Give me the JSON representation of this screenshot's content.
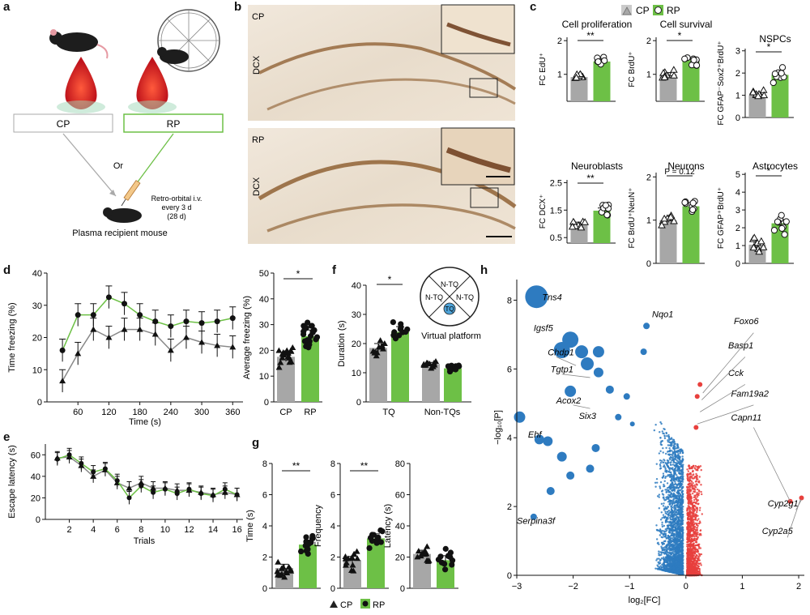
{
  "panel_letters": [
    "a",
    "b",
    "c",
    "d",
    "e",
    "f",
    "g",
    "h"
  ],
  "colors": {
    "cp": "#a7a7a7",
    "rp": "#6dc046",
    "volc_blue": "#2e7bc0",
    "volc_red": "#e8403d",
    "tq": "#4ea3d8"
  },
  "panel_a": {
    "box_cp": "CP",
    "box_rp": "RP",
    "or": "Or",
    "injection": [
      "Retro-orbital i.v.",
      "every 3 d",
      "(28 d)"
    ],
    "recipient": "Plasma recipient mouse"
  },
  "panel_b": {
    "top_label": "CP",
    "bottom_label": "RP",
    "stain": "DCX"
  },
  "panel_c": {
    "legend": {
      "cp": "CP",
      "rp": "RP"
    },
    "charts": [
      {
        "title": "Cell proliferation",
        "ylabel": "FC EdU⁺",
        "yticks": [
          "1",
          "2"
        ],
        "ylim": [
          0.2,
          2.1
        ],
        "sig": "**",
        "cp_mean": 0.92,
        "rp_mean": 1.38
      },
      {
        "title": "Cell survival",
        "ylabel": "FC BrdU⁺",
        "yticks": [
          "1",
          "2"
        ],
        "ylim": [
          0.2,
          2.1
        ],
        "sig": "*",
        "cp_mean": 1.0,
        "rp_mean": 1.42
      },
      {
        "title": "NSPCs",
        "ylabel": "FC GFAP⁻Sox2⁺BrdU⁺",
        "yticks": [
          "0",
          "1",
          "2",
          "3"
        ],
        "ylim": [
          0,
          3.1
        ],
        "sig": "*",
        "cp_mean": 1.0,
        "rp_mean": 1.92
      },
      {
        "title": "Neuroblasts",
        "ylabel": "FC DCX⁺",
        "yticks": [
          "0.5",
          "1.5",
          "2.5"
        ],
        "ylim": [
          0.3,
          2.6
        ],
        "sig": "**",
        "cp_mean": 1.0,
        "rp_mean": 1.48
      },
      {
        "title": "Neurons",
        "ylabel": "FC BrdU⁺NeuN⁺",
        "yticks": [
          "0",
          "1",
          "2"
        ],
        "ylim": [
          0,
          2.1
        ],
        "sig": "P = 0.12",
        "cp_mean": 1.0,
        "rp_mean": 1.32
      },
      {
        "title": "Astrocytes",
        "ylabel": "FC GFAP⁺BrdU⁺",
        "yticks": [
          "0",
          "1",
          "2",
          "3",
          "4",
          "5"
        ],
        "ylim": [
          0,
          5.1
        ],
        "sig": "*",
        "cp_mean": 1.05,
        "rp_mean": 2.25
      }
    ]
  },
  "chart_data": [
    {
      "id": "d_time",
      "type": "line",
      "xlabel": "Time (s)",
      "ylabel": "Time freezing (%)",
      "xticks": [
        "60",
        "120",
        "180",
        "240",
        "300",
        "360"
      ],
      "yticks": [
        "0",
        "10",
        "20",
        "30",
        "40"
      ],
      "xlim": [
        0,
        380
      ],
      "ylim": [
        0,
        40
      ],
      "series": [
        {
          "x": [
            30,
            60,
            90,
            120,
            150,
            180,
            210,
            240,
            270,
            300,
            330,
            360
          ],
          "values": [
            6.5,
            15,
            22.5,
            20,
            22.5,
            22.5,
            21,
            16,
            20,
            18.5,
            17.5,
            17
          ]
        },
        {
          "x": [
            30,
            60,
            90,
            120,
            150,
            180,
            210,
            240,
            270,
            300,
            330,
            360
          ],
          "values": [
            16,
            27,
            27,
            32.5,
            30.5,
            27,
            25,
            23.5,
            25,
            24.5,
            25,
            26
          ]
        }
      ]
    },
    {
      "id": "d_avg",
      "type": "bar",
      "ylabel": "Average freezing (%)",
      "categories": [
        "CP",
        "RP"
      ],
      "values": [
        17.5,
        25.5
      ],
      "yticks": [
        "0",
        "10",
        "20",
        "30",
        "40",
        "50"
      ],
      "ylim": [
        0,
        50
      ],
      "sig": "*"
    },
    {
      "id": "e_latency",
      "type": "line",
      "xlabel": "Trials",
      "ylabel": "Escape latency (s)",
      "xticks": [
        "2",
        "4",
        "6",
        "8",
        "10",
        "12",
        "14",
        "16"
      ],
      "yticks": [
        "0",
        "20",
        "40",
        "60"
      ],
      "xlim": [
        0,
        16.5
      ],
      "ylim": [
        0,
        70
      ],
      "series": [
        {
          "x": [
            1,
            2,
            3,
            4,
            5,
            6,
            7,
            8,
            9,
            10,
            11,
            12,
            13,
            14,
            15,
            16
          ],
          "values": [
            57,
            58,
            50,
            40,
            46,
            34,
            29,
            34,
            29,
            29,
            27,
            27,
            25,
            23,
            25,
            23
          ]
        },
        {
          "x": [
            1,
            2,
            3,
            4,
            5,
            6,
            7,
            8,
            9,
            10,
            11,
            12,
            13,
            14,
            15,
            16
          ],
          "values": [
            56,
            60,
            52,
            44,
            47,
            36,
            20,
            31,
            25,
            28,
            24,
            28,
            24,
            22,
            28,
            23
          ]
        }
      ]
    },
    {
      "id": "f_duration",
      "type": "bar",
      "ylabel": "Duration (s)",
      "categories": [
        "TQ",
        "Non-TQs"
      ],
      "series": [
        {
          "values": [
            18.5,
            13
          ]
        },
        {
          "values": [
            24,
            11.5
          ]
        }
      ],
      "yticks": [
        "0",
        "10",
        "20",
        "30",
        "40"
      ],
      "ylim": [
        0,
        40
      ],
      "sig": "*",
      "inset": {
        "quadrants": [
          "N-TQ",
          "N-TQ",
          "N-TQ",
          "TQ"
        ],
        "label": "Virtual platform"
      }
    },
    {
      "id": "g_time",
      "type": "bar",
      "ylabel": "Time (s)",
      "categories": [
        "CP",
        "RP"
      ],
      "values": [
        1.3,
        2.8
      ],
      "yticks": [
        "0",
        "2",
        "4",
        "6",
        "8"
      ],
      "ylim": [
        0,
        8
      ],
      "sig": "**"
    },
    {
      "id": "g_freq",
      "type": "bar",
      "ylabel": "Frequency",
      "categories": [
        "CP",
        "RP"
      ],
      "values": [
        1.8,
        3.2
      ],
      "yticks": [
        "0",
        "2",
        "4",
        "6",
        "8"
      ],
      "ylim": [
        0,
        8
      ],
      "sig": "**"
    },
    {
      "id": "g_lat",
      "type": "bar",
      "ylabel": "Latency (s)",
      "categories": [
        "CP",
        "RP"
      ],
      "values": [
        22,
        18
      ],
      "yticks": [
        "0",
        "20",
        "40",
        "60",
        "80"
      ],
      "ylim": [
        0,
        80
      ],
      "sig": ""
    },
    {
      "id": "h_volcano",
      "type": "scatter",
      "xlabel": "log₂[FC]",
      "ylabel": "−log₁₀[P]",
      "xticks": [
        "−3",
        "−2",
        "−1",
        "0",
        "1",
        "2"
      ],
      "yticks": [
        "0",
        "2",
        "4",
        "6",
        "8"
      ],
      "xlim": [
        -3,
        2.1
      ],
      "ylim": [
        0,
        8.6
      ],
      "labels": [
        {
          "text": "Tns4",
          "x": -2.55,
          "y": 8.0
        },
        {
          "text": "Igsf5",
          "x": -2.7,
          "y": 7.1
        },
        {
          "text": "Chdp1",
          "x": -2.45,
          "y": 6.4
        },
        {
          "text": "Tgtp1",
          "x": -2.4,
          "y": 5.9
        },
        {
          "text": "Acox2",
          "x": -2.3,
          "y": 5.0
        },
        {
          "text": "Six3",
          "x": -1.9,
          "y": 4.55
        },
        {
          "text": "Ehf",
          "x": -2.8,
          "y": 4.0
        },
        {
          "text": "Nqo1",
          "x": -0.6,
          "y": 7.5
        },
        {
          "text": "Foxo6",
          "x": 0.85,
          "y": 7.3
        },
        {
          "text": "Basp1",
          "x": 0.75,
          "y": 6.6
        },
        {
          "text": "Cck",
          "x": 0.75,
          "y": 5.8
        },
        {
          "text": "Fam19a2",
          "x": 0.8,
          "y": 5.2
        },
        {
          "text": "Capn11",
          "x": 0.8,
          "y": 4.5
        },
        {
          "text": "Cyp2g1",
          "x": 1.45,
          "y": 2.0
        },
        {
          "text": "Cyp2a5",
          "x": 1.35,
          "y": 1.2
        },
        {
          "text": "Serpina3f",
          "x": -3.0,
          "y": 1.5
        }
      ],
      "big_points": [
        {
          "x": -2.65,
          "y": 8.1,
          "r": 14
        },
        {
          "x": -2.05,
          "y": 6.85,
          "r": 10
        },
        {
          "x": -2.2,
          "y": 6.55,
          "r": 10
        },
        {
          "x": -1.85,
          "y": 6.5,
          "r": 8
        },
        {
          "x": -1.55,
          "y": 6.5,
          "r": 7
        },
        {
          "x": -1.75,
          "y": 6.15,
          "r": 8
        },
        {
          "x": -1.55,
          "y": 5.9,
          "r": 6
        },
        {
          "x": -2.05,
          "y": 5.35,
          "r": 7
        },
        {
          "x": -2.95,
          "y": 4.6,
          "r": 7
        },
        {
          "x": -2.6,
          "y": 3.95,
          "r": 6
        },
        {
          "x": -2.45,
          "y": 3.9,
          "r": 6
        },
        {
          "x": -2.2,
          "y": 3.45,
          "r": 6
        },
        {
          "x": -1.6,
          "y": 3.7,
          "r": 5
        },
        {
          "x": -1.7,
          "y": 3.1,
          "r": 5
        },
        {
          "x": -2.05,
          "y": 2.9,
          "r": 5
        },
        {
          "x": -2.4,
          "y": 2.45,
          "r": 5
        },
        {
          "x": -2.7,
          "y": 1.7,
          "r": 4
        },
        {
          "x": -1.35,
          "y": 5.4,
          "r": 5
        },
        {
          "x": -1.2,
          "y": 4.6,
          "r": 4
        },
        {
          "x": -0.75,
          "y": 6.5,
          "r": 4
        },
        {
          "x": -0.7,
          "y": 7.25,
          "r": 4
        },
        {
          "x": -1.05,
          "y": 5.2,
          "r": 4
        },
        {
          "x": -0.95,
          "y": 4.4,
          "r": 3
        }
      ],
      "red_outliers": [
        {
          "x": 1.85,
          "y": 2.15
        },
        {
          "x": 2.05,
          "y": 2.25
        },
        {
          "x": 0.2,
          "y": 5.2
        },
        {
          "x": 0.25,
          "y": 5.55
        },
        {
          "x": 0.18,
          "y": 4.3
        }
      ]
    }
  ]
}
